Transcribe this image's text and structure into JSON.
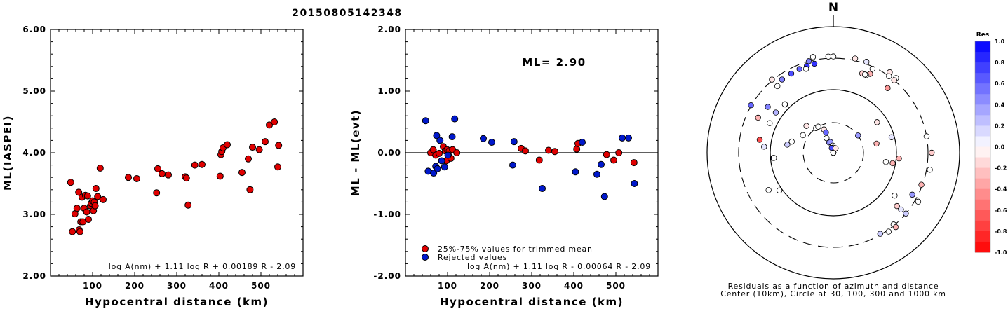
{
  "event_id": "20150805142348",
  "ml_text": "ML= 2.90",
  "colors": {
    "trimmed": "#e00000",
    "rejected": "#0018cc"
  },
  "chart_data": [
    {
      "type": "scatter",
      "xlabel": "Hypocentral distance (km)",
      "ylabel": "ML(IASPEI)",
      "xlim": [
        0,
        600
      ],
      "ylim": [
        2.0,
        6.0
      ],
      "xticks": [
        "100",
        "200",
        "300",
        "400",
        "500"
      ],
      "yticks": [
        "2.00",
        "3.00",
        "4.00",
        "5.00",
        "6.00"
      ],
      "formula": "log A(nm) + 1.11 log R + 0.00189 R - 2.09",
      "points": [
        [
          48,
          3.52
        ],
        [
          52,
          2.72
        ],
        [
          58,
          3.01
        ],
        [
          63,
          3.1
        ],
        [
          67,
          3.36
        ],
        [
          68,
          2.75
        ],
        [
          70,
          2.72
        ],
        [
          72,
          2.88
        ],
        [
          75,
          3.28
        ],
        [
          77,
          2.88
        ],
        [
          80,
          3.1
        ],
        [
          83,
          3.31
        ],
        [
          86,
          3.04
        ],
        [
          88,
          3.3
        ],
        [
          90,
          2.92
        ],
        [
          95,
          3.14
        ],
        [
          97,
          3.18
        ],
        [
          100,
          3.22
        ],
        [
          102,
          3.06
        ],
        [
          104,
          3.2
        ],
        [
          106,
          3.14
        ],
        [
          108,
          3.42
        ],
        [
          112,
          3.29
        ],
        [
          118,
          3.75
        ],
        [
          125,
          3.24
        ],
        [
          185,
          3.6
        ],
        [
          205,
          3.58
        ],
        [
          252,
          3.35
        ],
        [
          255,
          3.74
        ],
        [
          265,
          3.66
        ],
        [
          280,
          3.64
        ],
        [
          320,
          3.61
        ],
        [
          323,
          3.59
        ],
        [
          327,
          3.15
        ],
        [
          343,
          3.8
        ],
        [
          360,
          3.81
        ],
        [
          403,
          3.62
        ],
        [
          405,
          3.97
        ],
        [
          407,
          4.02
        ],
        [
          410,
          4.08
        ],
        [
          420,
          4.13
        ],
        [
          455,
          3.68
        ],
        [
          470,
          3.9
        ],
        [
          474,
          3.4
        ],
        [
          480,
          4.09
        ],
        [
          496,
          4.05
        ],
        [
          510,
          4.18
        ],
        [
          520,
          4.45
        ],
        [
          532,
          4.5
        ],
        [
          540,
          3.77
        ],
        [
          542,
          4.12
        ]
      ]
    },
    {
      "type": "scatter",
      "xlabel": "Hypocentral distance (km)",
      "ylabel": "ML - ML(evt)",
      "xlim": [
        0,
        600
      ],
      "ylim": [
        -2.0,
        2.0
      ],
      "xticks": [
        "100",
        "200",
        "300",
        "400",
        "500"
      ],
      "yticks": [
        "-2.00",
        "-1.00",
        "0.00",
        "1.00",
        "2.00"
      ],
      "legend": [
        "25%-75% values for trimmed mean",
        "Rejected values"
      ],
      "formula": "log A(nm) + 1.11 log R - 0.00064 R - 2.09",
      "series": [
        {
          "name": "25%-75% values for trimmed mean",
          "points": [
            [
              60,
              0.0
            ],
            [
              66,
              0.05
            ],
            [
              72,
              -0.04
            ],
            [
              80,
              -0.01
            ],
            [
              90,
              0.1
            ],
            [
              95,
              0.03
            ],
            [
              97,
              -0.13
            ],
            [
              99,
              0.05
            ],
            [
              102,
              -0.04
            ],
            [
              104,
              0.03
            ],
            [
              108,
              -0.09
            ],
            [
              112,
              0.05
            ],
            [
              122,
              0.0
            ],
            [
              275,
              0.07
            ],
            [
              285,
              0.03
            ],
            [
              318,
              -0.12
            ],
            [
              340,
              0.04
            ],
            [
              355,
              0.02
            ],
            [
              407,
              0.06
            ],
            [
              410,
              0.15
            ],
            [
              478,
              -0.03
            ],
            [
              495,
              -0.12
            ],
            [
              507,
              0.0
            ],
            [
              543,
              -0.16
            ]
          ]
        },
        {
          "name": "Rejected values",
          "points": [
            [
              48,
              0.52
            ],
            [
              54,
              -0.3
            ],
            [
              67,
              -0.33
            ],
            [
              72,
              -0.22
            ],
            [
              74,
              0.28
            ],
            [
              76,
              -0.26
            ],
            [
              82,
              0.2
            ],
            [
              86,
              -0.13
            ],
            [
              93,
              -0.23
            ],
            [
              101,
              -0.04
            ],
            [
              111,
              0.26
            ],
            [
              117,
              0.55
            ],
            [
              185,
              0.23
            ],
            [
              205,
              0.17
            ],
            [
              255,
              -0.2
            ],
            [
              258,
              0.18
            ],
            [
              325,
              -0.58
            ],
            [
              404,
              -0.31
            ],
            [
              420,
              0.17
            ],
            [
              455,
              -0.35
            ],
            [
              465,
              -0.19
            ],
            [
              473,
              -0.71
            ],
            [
              515,
              0.24
            ],
            [
              530,
              0.24
            ],
            [
              544,
              -0.5
            ]
          ]
        }
      ]
    },
    {
      "type": "scatter",
      "title": "Residuals as a function of azimuth and distance",
      "subtitle": "Center (10km), Circle at 30, 100, 300 and 1000 km",
      "north_label": "N",
      "colorbar": {
        "title": "Res",
        "ticks": [
          "1.0",
          "0.8",
          "0.6",
          "0.4",
          "0.2",
          "0.0",
          "-0.2",
          "-0.4",
          "-0.6",
          "-0.8",
          "-1.0"
        ]
      },
      "points": [
        [
          0,
          320,
          0.0
        ],
        [
          -3,
          320,
          0.0
        ],
        [
          13,
          325,
          -0.1
        ],
        [
          20,
          326,
          0.1
        ],
        [
          40,
          335,
          0.0
        ],
        [
          -12,
          340,
          0.0
        ],
        [
          -15,
          302,
          0.5
        ],
        [
          -40,
          310,
          -0.1
        ],
        [
          -60,
          305,
          0.6
        ],
        [
          -12,
          265,
          0.8
        ],
        [
          -17,
          262,
          0.8
        ],
        [
          -22,
          258,
          0.6
        ],
        [
          -28,
          252,
          0.7
        ],
        [
          -35,
          250,
          0.5
        ],
        [
          -18,
          240,
          0.0
        ],
        [
          -40,
          230,
          0.0
        ],
        [
          -55,
          180,
          0.5
        ],
        [
          -65,
          200,
          -0.3
        ],
        [
          -80,
          150,
          -0.7
        ],
        [
          -120,
          150,
          0.0
        ],
        [
          -125,
          110,
          0.0
        ],
        [
          -85,
          125,
          0.1
        ],
        [
          -65,
          128,
          0.0
        ],
        [
          -55,
          128,
          0.3
        ],
        [
          -45,
          120,
          0.0
        ],
        [
          -45,
          121,
          0.0
        ],
        [
          -95,
          90,
          0.5
        ],
        [
          -95,
          88,
          0.0
        ],
        [
          -80,
          55,
          0.2
        ],
        [
          -75,
          48,
          0.0
        ],
        [
          -60,
          36,
          0.0
        ],
        [
          -45,
          40,
          -0.1
        ],
        [
          -35,
          30,
          0.0
        ],
        [
          -30,
          30,
          0.0
        ],
        [
          -22,
          25,
          -0.1
        ],
        [
          -20,
          22,
          0.6
        ],
        [
          -25,
          18,
          0.0
        ],
        [
          -22,
          15,
          0.5
        ],
        [
          -15,
          15,
          0.4
        ],
        [
          -5,
          13,
          0.0
        ],
        [
          -3,
          12,
          0.0
        ],
        [
          -18,
          12,
          0.7
        ],
        [
          -30,
          10,
          0.0
        ],
        [
          5,
          5,
          0.0
        ],
        [
          5,
          7,
          0.0
        ],
        [
          10,
          4,
          0.3
        ],
        [
          15,
          5,
          0.0
        ],
        [
          2,
          2,
          0.0
        ],
        [
          7,
          0,
          0.0
        ],
        [
          27,
          12,
          -0.1
        ],
        [
          55,
          30,
          0.4
        ],
        [
          78,
          50,
          -0.3
        ],
        [
          100,
          70,
          0.0
        ],
        [
          55,
          70,
          -0.1
        ],
        [
          75,
          90,
          0.1
        ],
        [
          100,
          90,
          -0.3
        ],
        [
          95,
          110,
          -0.3
        ],
        [
          125,
          150,
          0.0
        ],
        [
          130,
          200,
          -0.2
        ],
        [
          130,
          300,
          0.2
        ],
        [
          130,
          240,
          0.1
        ],
        [
          118,
          250,
          0.4
        ],
        [
          110,
          290,
          -0.3
        ],
        [
          145,
          320,
          0.0
        ],
        [
          150,
          290,
          0.2
        ],
        [
          140,
          290,
          0.0
        ],
        [
          140,
          330,
          -0.3
        ],
        [
          100,
          340,
          0.0
        ],
        [
          120,
          340,
          0.0
        ],
        [
          90,
          345,
          -0.2
        ],
        [
          35,
          345,
          -0.1
        ],
        [
          40,
          300,
          -0.1
        ],
        [
          36,
          300,
          0.0
        ],
        [
          25,
          280,
          0.0
        ],
        [
          20,
          210,
          -0.2
        ],
        [
          25,
          230,
          -0.3
        ],
        [
          23,
          210,
          0.0
        ],
        [
          22,
          210,
          0.0
        ],
        [
          80,
          300,
          0.0
        ],
        [
          40,
          210,
          -0.4
        ]
      ]
    }
  ]
}
